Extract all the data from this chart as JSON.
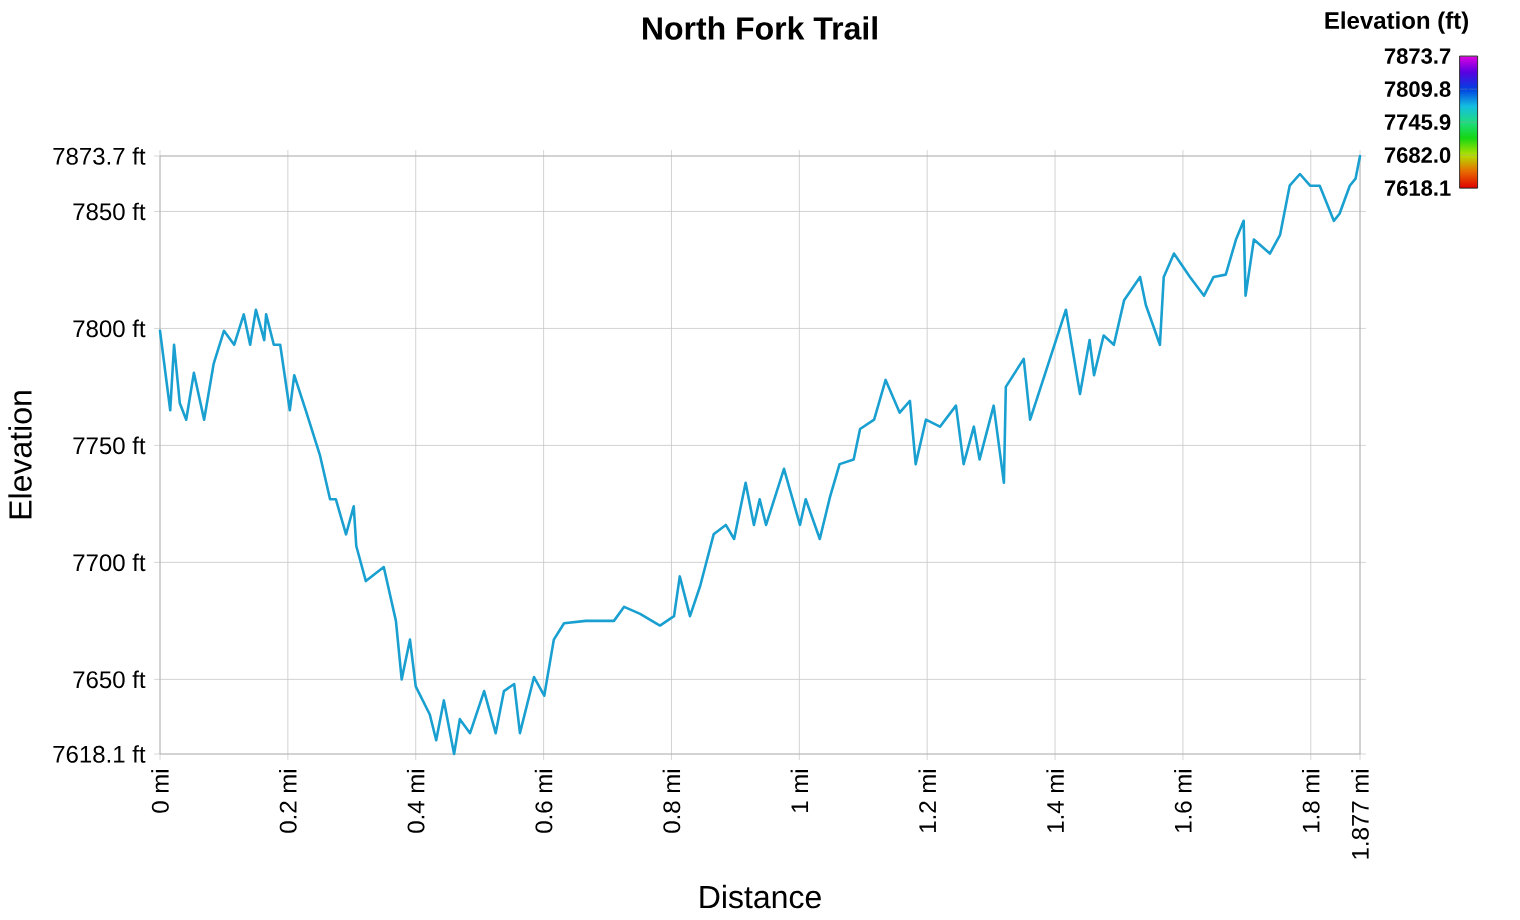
{
  "chart_data": {
    "type": "line",
    "title": "North Fork Trail",
    "xlabel": "Distance",
    "ylabel": "Elevation",
    "clabel": "Elevation (ft)",
    "x": [
      0,
      0.016,
      0.022,
      0.031,
      0.041,
      0.053,
      0.069,
      0.084,
      0.1,
      0.116,
      0.131,
      0.141,
      0.15,
      0.163,
      0.166,
      0.178,
      0.188,
      0.203,
      0.21,
      0.228,
      0.25,
      0.266,
      0.275,
      0.291,
      0.303,
      0.307,
      0.322,
      0.35,
      0.369,
      0.378,
      0.391,
      0.4,
      0.422,
      0.432,
      0.444,
      0.46,
      0.469,
      0.485,
      0.507,
      0.525,
      0.538,
      0.554,
      0.563,
      0.585,
      0.601,
      0.616,
      0.632,
      0.666,
      0.71,
      0.726,
      0.751,
      0.782,
      0.804,
      0.813,
      0.829,
      0.845,
      0.866,
      0.885,
      0.898,
      0.916,
      0.929,
      0.938,
      0.948,
      0.976,
      1.001,
      1.01,
      1.032,
      1.048,
      1.063,
      1.085,
      1.095,
      1.117,
      1.135,
      1.157,
      1.173,
      1.182,
      1.198,
      1.22,
      1.245,
      1.257,
      1.273,
      1.282,
      1.304,
      1.32,
      1.323,
      1.351,
      1.361,
      1.386,
      1.417,
      1.439,
      1.454,
      1.461,
      1.476,
      1.492,
      1.508,
      1.533,
      1.542,
      1.564,
      1.57,
      1.586,
      1.611,
      1.633,
      1.648,
      1.667,
      1.683,
      1.695,
      1.698,
      1.711,
      1.736,
      1.752,
      1.767,
      1.783,
      1.799,
      1.814,
      1.836,
      1.845,
      1.861,
      1.87,
      1.877
    ],
    "values": [
      7799,
      7765,
      7793,
      7768,
      7761,
      7781,
      7761,
      7785,
      7799,
      7793,
      7806,
      7793,
      7808,
      7795,
      7806,
      7793,
      7793,
      7765,
      7780,
      7765,
      7746,
      7727,
      7727,
      7712,
      7724,
      7707,
      7692,
      7698,
      7675,
      7650,
      7667,
      7647,
      7635,
      7624,
      7641,
      7618.1,
      7633,
      7627,
      7645,
      7627,
      7645,
      7648,
      7627,
      7651,
      7643,
      7667,
      7674,
      7675,
      7675,
      7681,
      7678,
      7673,
      7677,
      7694,
      7677,
      7690,
      7712,
      7716,
      7710,
      7734,
      7716,
      7727,
      7716,
      7740,
      7716,
      7727,
      7710,
      7728,
      7742,
      7744,
      7757,
      7761,
      7778,
      7764,
      7769,
      7742,
      7761,
      7758,
      7767,
      7742,
      7758,
      7744,
      7767,
      7734,
      7775,
      7787,
      7761,
      7782,
      7808,
      7772,
      7795,
      7780,
      7797,
      7793,
      7812,
      7822,
      7810,
      7793,
      7822,
      7832,
      7822,
      7814,
      7822,
      7823,
      7838,
      7846,
      7814,
      7838,
      7832,
      7840,
      7861,
      7866,
      7861,
      7861,
      7846,
      7849,
      7861,
      7864,
      7873.7
    ],
    "color": "#1aa0d0",
    "xlim": [
      0,
      1.877
    ],
    "xticks": [
      {
        "value": 0,
        "label": "0 mi"
      },
      {
        "value": 0.2,
        "label": "0.2 mi"
      },
      {
        "value": 0.4,
        "label": "0.4 mi"
      },
      {
        "value": 0.6,
        "label": "0.6 mi"
      },
      {
        "value": 0.8,
        "label": "0.8 mi"
      },
      {
        "value": 1,
        "label": "1 mi"
      },
      {
        "value": 1.2,
        "label": "1.2 mi"
      },
      {
        "value": 1.4,
        "label": "1.4 mi"
      },
      {
        "value": 1.6,
        "label": "1.6 mi"
      },
      {
        "value": 1.8,
        "label": "1.8 mi"
      },
      {
        "value": 1.877,
        "label": "1.877 mi"
      }
    ],
    "ylim": [
      7618.1,
      7873.7
    ],
    "yticks": [
      {
        "value": 7618.1,
        "label": "7618.1 ft"
      },
      {
        "value": 7650,
        "label": "7650 ft"
      },
      {
        "value": 7700,
        "label": "7700 ft"
      },
      {
        "value": 7750,
        "label": "7750 ft"
      },
      {
        "value": 7800,
        "label": "7800 ft"
      },
      {
        "value": 7850,
        "label": "7850 ft"
      },
      {
        "value": 7873.7,
        "label": "7873.7 ft"
      }
    ],
    "clim": [
      7618.1,
      7873.7
    ],
    "cticks": [
      7873.7,
      7809.8,
      7745.9,
      {
        "value": 7682.0,
        "label": "7682.0"
      },
      7618.1
    ],
    "grid": true,
    "marker": "none"
  }
}
